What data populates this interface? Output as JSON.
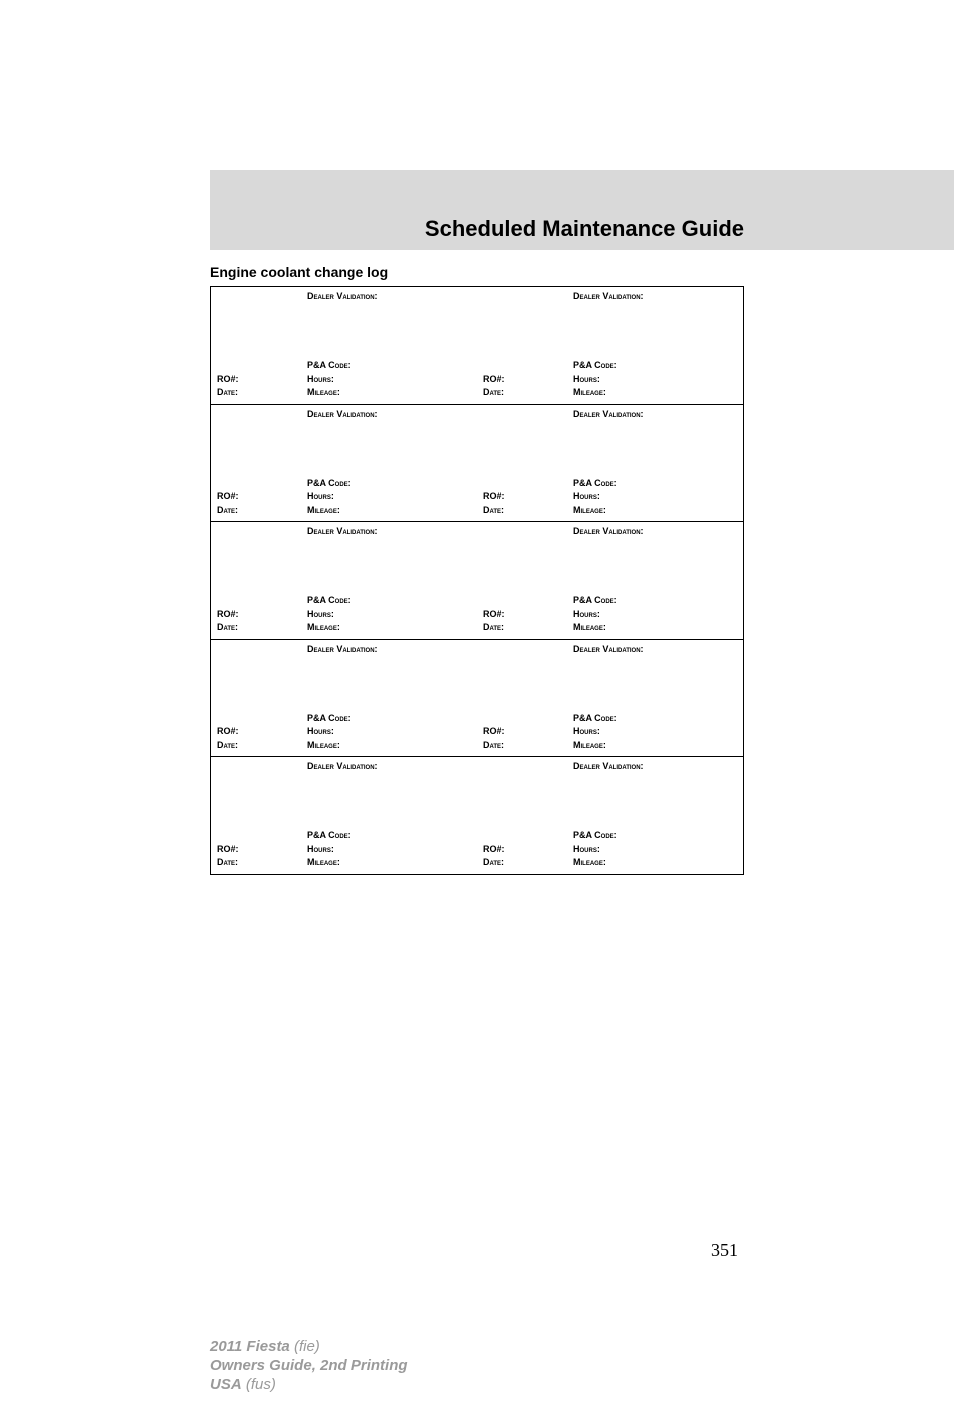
{
  "colors": {
    "header_band_bg": "#d9d9d9",
    "text": "#000000",
    "footer_text": "#9a9a9a",
    "border": "#000000",
    "page_bg": "#ffffff"
  },
  "typography": {
    "body_font": "Arial, Helvetica, sans-serif",
    "pagenum_font": "Times New Roman, serif",
    "title_fontsize": 22,
    "section_fontsize": 14,
    "cell_fontsize": 9,
    "footer_fontsize": 15
  },
  "header": {
    "title": "Scheduled Maintenance Guide"
  },
  "section": {
    "heading": "Engine coolant change log"
  },
  "log_labels": {
    "dealer_validation": "Dealer Validation:",
    "pna_code": "P&A Code:",
    "ro": "RO#:",
    "hours": "Hours:",
    "date": "Date:",
    "mileage": "Mileage:"
  },
  "log_grid": {
    "rows": 5,
    "cols": 2
  },
  "page_number": "351",
  "footer": {
    "line1_bold": "2011 Fiesta",
    "line1_ital": "(fie)",
    "line2_bold": "Owners Guide, 2nd Printing",
    "line3_bold": "USA",
    "line3_ital": "(fus)"
  }
}
